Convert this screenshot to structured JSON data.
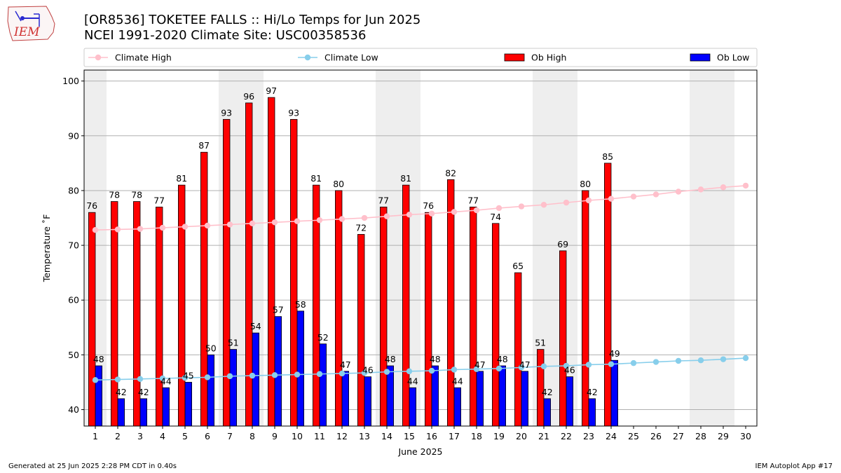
{
  "header": {
    "title": "[OR8536] TOKETEE FALLS :: Hi/Lo Temps for Jun 2025",
    "subtitle": "NCEI 1991-2020 Climate Site: USC00358536"
  },
  "logo_text": "IEM",
  "footer": {
    "left": "Generated at 25 Jun 2025 2:28 PM CDT in 0.40s",
    "right": "IEM Autoplot App #17"
  },
  "colors": {
    "ob_high": "#ff0000",
    "ob_low": "#0000ff",
    "climate_high": "#ffc0cb",
    "climate_low": "#87ceeb",
    "weekend_band": "#eeeeee",
    "grid": "#b0b0b0"
  },
  "chart_data": {
    "type": "bar",
    "xlabel": "June 2025",
    "ylabel": "Temperature ˚F",
    "ylim": [
      37,
      102
    ],
    "yticks": [
      40,
      50,
      60,
      70,
      80,
      90,
      100
    ],
    "grid": "horizontal",
    "legend_position": "top, horizontal",
    "categories": [
      "1",
      "2",
      "3",
      "4",
      "5",
      "6",
      "7",
      "8",
      "9",
      "10",
      "11",
      "12",
      "13",
      "14",
      "15",
      "16",
      "17",
      "18",
      "19",
      "20",
      "21",
      "22",
      "23",
      "24",
      "25",
      "26",
      "27",
      "28",
      "29",
      "30"
    ],
    "weekend_days": [
      1,
      7,
      8,
      14,
      15,
      21,
      22,
      28,
      29
    ],
    "series": [
      {
        "name": "Climate High",
        "kind": "line",
        "values": [
          72.8,
          72.9,
          73.0,
          73.2,
          73.4,
          73.6,
          73.8,
          74.0,
          74.2,
          74.4,
          74.6,
          74.8,
          75.0,
          75.3,
          75.6,
          75.8,
          76.1,
          76.4,
          76.8,
          77.1,
          77.4,
          77.8,
          78.2,
          78.5,
          78.9,
          79.3,
          79.8,
          80.2,
          80.6,
          80.9
        ]
      },
      {
        "name": "Climate Low",
        "kind": "line",
        "values": [
          45.4,
          45.5,
          45.6,
          45.7,
          45.8,
          45.9,
          46.1,
          46.2,
          46.3,
          46.4,
          46.5,
          46.6,
          46.7,
          46.9,
          47.0,
          47.1,
          47.3,
          47.4,
          47.5,
          47.7,
          47.9,
          48.0,
          48.2,
          48.3,
          48.5,
          48.7,
          48.9,
          49.0,
          49.2,
          49.4
        ]
      },
      {
        "name": "Ob High",
        "kind": "bar",
        "values": [
          76,
          78,
          78,
          77,
          81,
          87,
          93,
          96,
          97,
          93,
          81,
          80,
          72,
          77,
          81,
          76,
          82,
          77,
          74,
          65,
          51,
          69,
          80,
          85,
          null,
          null,
          null,
          null,
          null,
          null
        ]
      },
      {
        "name": "Ob Low",
        "kind": "bar",
        "values": [
          48,
          42,
          42,
          44,
          45,
          50,
          51,
          54,
          57,
          58,
          52,
          47,
          46,
          48,
          44,
          48,
          44,
          47,
          48,
          47,
          42,
          46,
          42,
          49,
          null,
          null,
          null,
          null,
          null,
          null
        ]
      }
    ]
  }
}
